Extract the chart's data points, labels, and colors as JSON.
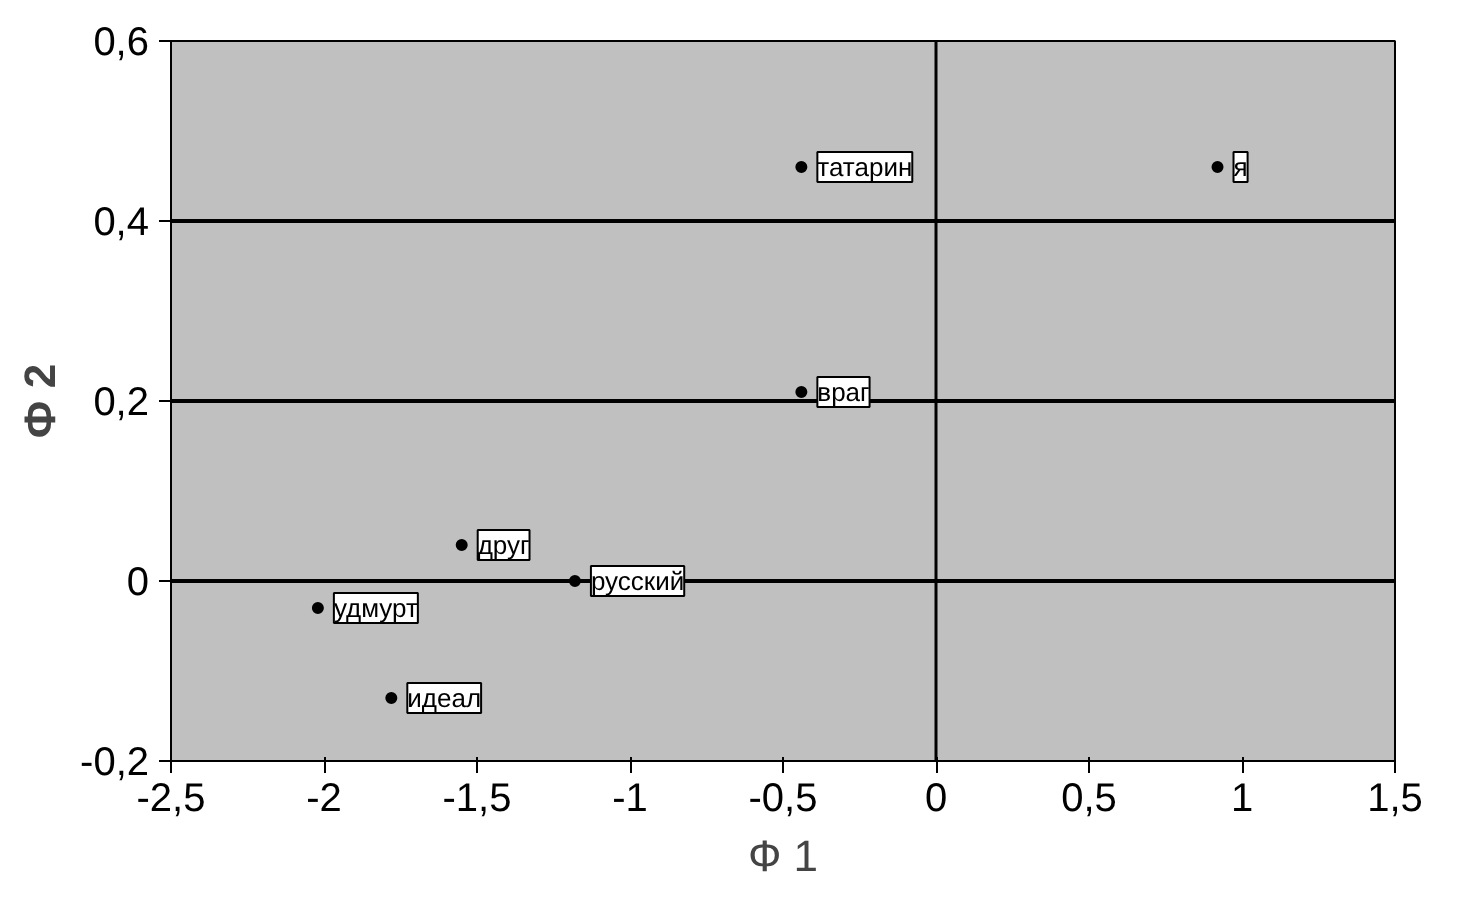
{
  "chart_data": {
    "type": "scatter",
    "xlabel": "Ф 1",
    "ylabel": "Ф 2",
    "xlim": [
      -2.5,
      1.5
    ],
    "ylim": [
      -0.2,
      0.6
    ],
    "xticks": [
      {
        "value": -2.5,
        "label": "-2,5"
      },
      -2,
      {
        "value": -1.5,
        "label": "-1,5"
      },
      -1,
      {
        "value": -0.5,
        "label": "-0,5"
      },
      0,
      {
        "value": 0.5,
        "label": "0,5"
      },
      1,
      {
        "value": 1.5,
        "label": "1,5"
      }
    ],
    "yticks": [
      {
        "value": -0.2,
        "label": "-0,2"
      },
      0,
      {
        "value": 0.2,
        "label": "0,2"
      },
      {
        "value": 0.4,
        "label": "0,4"
      },
      {
        "value": 0.6,
        "label": "0,6"
      }
    ],
    "grid": "y",
    "marker": "circle",
    "series": [
      {
        "color": "#000000",
        "x": [
          -0.44,
          0.92,
          -0.44,
          -1.55,
          -1.18,
          -2.02,
          -1.78
        ],
        "values": [
          0.46,
          0.46,
          0.21,
          0.04,
          0.0,
          -0.03,
          -0.13
        ],
        "value_labels": [
          "татарин",
          "я",
          "враг",
          "друг",
          "русский",
          "удмурт",
          "идеал"
        ]
      }
    ]
  }
}
